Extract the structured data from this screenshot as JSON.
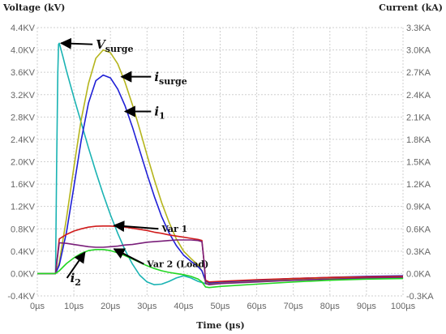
{
  "chart_data": {
    "type": "line",
    "title": "",
    "xlabel": "Time (µs)",
    "ylabel_left": "Voltage (kV)",
    "ylabel_right": "Current (kA)",
    "xlim": [
      0,
      100
    ],
    "ylim_left": [
      -0.4,
      4.4
    ],
    "ylim_right": [
      -0.3,
      3.3
    ],
    "grid": true,
    "x_ticks": [
      "0µs",
      "10µs",
      "20µs",
      "30µs",
      "40µs",
      "50µs",
      "60µs",
      "70µs",
      "80µs",
      "90µs",
      "100µs"
    ],
    "y_ticks_left": [
      "4.4KV",
      "4.0KV",
      "3.6KV",
      "3.2KV",
      "2.8KV",
      "2.4KV",
      "2.0KV",
      "1.6KV",
      "1.2KV",
      "0.8KV",
      "0.4KV",
      "0.0KV",
      "-0.4KV"
    ],
    "y_ticks_right": [
      "3.3KA",
      "3.0KA",
      "2.7KA",
      "2.4KA",
      "2.1KA",
      "1.8KA",
      "1.5KA",
      "1.2KA",
      "0.9KA",
      "0.6KA",
      "0.3KA",
      "0.0KA",
      "-0.3KA"
    ],
    "series": [
      {
        "color": "#1ab3b3",
        "axis": "left",
        "points": [
          [
            0,
            0
          ],
          [
            5,
            0
          ],
          [
            5.3,
            2.0
          ],
          [
            5.6,
            3.6
          ],
          [
            5.8,
            4.1
          ],
          [
            6.0,
            4.12
          ],
          [
            7,
            3.88
          ],
          [
            8,
            3.62
          ],
          [
            10,
            3.15
          ],
          [
            12,
            2.7
          ],
          [
            14,
            2.25
          ],
          [
            16,
            1.82
          ],
          [
            18,
            1.42
          ],
          [
            20,
            1.05
          ],
          [
            22,
            0.72
          ],
          [
            24,
            0.42
          ],
          [
            26,
            0.17
          ],
          [
            28,
            -0.03
          ],
          [
            30,
            -0.15
          ],
          [
            32,
            -0.2
          ],
          [
            34,
            -0.19
          ],
          [
            36,
            -0.14
          ],
          [
            38,
            -0.08
          ],
          [
            40,
            -0.04
          ],
          [
            42,
            -0.08
          ],
          [
            44,
            -0.14
          ],
          [
            46,
            -0.18
          ],
          [
            50,
            -0.16
          ],
          [
            60,
            -0.14
          ],
          [
            70,
            -0.12
          ],
          [
            80,
            -0.1
          ],
          [
            90,
            -0.09
          ],
          [
            100,
            -0.08
          ]
        ]
      },
      {
        "color": "#b5b51c",
        "axis": "left",
        "points": [
          [
            0,
            0
          ],
          [
            5,
            0
          ],
          [
            6,
            0.2
          ],
          [
            8,
            1.0
          ],
          [
            10,
            1.9
          ],
          [
            12,
            2.75
          ],
          [
            14,
            3.4
          ],
          [
            16,
            3.85
          ],
          [
            18,
            4.0
          ],
          [
            20,
            3.95
          ],
          [
            22,
            3.75
          ],
          [
            24,
            3.42
          ],
          [
            26,
            3.02
          ],
          [
            28,
            2.58
          ],
          [
            30,
            2.12
          ],
          [
            32,
            1.68
          ],
          [
            34,
            1.27
          ],
          [
            36,
            0.92
          ],
          [
            38,
            0.62
          ],
          [
            40,
            0.4
          ],
          [
            42,
            0.27
          ],
          [
            44,
            0.15
          ],
          [
            45,
            0.05
          ],
          [
            46,
            -0.15
          ],
          [
            47,
            -0.19
          ],
          [
            50,
            -0.17
          ],
          [
            60,
            -0.13
          ],
          [
            70,
            -0.1
          ],
          [
            80,
            -0.08
          ],
          [
            90,
            -0.06
          ],
          [
            100,
            -0.05
          ]
        ]
      },
      {
        "color": "#1f1fd6",
        "axis": "left",
        "points": [
          [
            0,
            0
          ],
          [
            5,
            0
          ],
          [
            6,
            0.15
          ],
          [
            8,
            0.75
          ],
          [
            10,
            1.55
          ],
          [
            12,
            2.38
          ],
          [
            14,
            3.05
          ],
          [
            16,
            3.45
          ],
          [
            18,
            3.55
          ],
          [
            20,
            3.5
          ],
          [
            22,
            3.3
          ],
          [
            24,
            3.0
          ],
          [
            26,
            2.62
          ],
          [
            28,
            2.2
          ],
          [
            30,
            1.78
          ],
          [
            32,
            1.38
          ],
          [
            34,
            1.02
          ],
          [
            36,
            0.73
          ],
          [
            38,
            0.5
          ],
          [
            40,
            0.33
          ],
          [
            42,
            0.22
          ],
          [
            44,
            0.12
          ],
          [
            45,
            0.05
          ],
          [
            46,
            -0.13
          ],
          [
            47,
            -0.17
          ],
          [
            50,
            -0.15
          ],
          [
            60,
            -0.12
          ],
          [
            70,
            -0.09
          ],
          [
            80,
            -0.07
          ],
          [
            90,
            -0.05
          ],
          [
            100,
            -0.04
          ]
        ]
      },
      {
        "color": "#d01c1c",
        "axis": "left",
        "points": [
          [
            0,
            0
          ],
          [
            5,
            0
          ],
          [
            6,
            0.62
          ],
          [
            8,
            0.7
          ],
          [
            10,
            0.76
          ],
          [
            12,
            0.8
          ],
          [
            14,
            0.83
          ],
          [
            16,
            0.845
          ],
          [
            18,
            0.85
          ],
          [
            20,
            0.85
          ],
          [
            22,
            0.84
          ],
          [
            24,
            0.83
          ],
          [
            26,
            0.81
          ],
          [
            28,
            0.79
          ],
          [
            30,
            0.77
          ],
          [
            32,
            0.74
          ],
          [
            34,
            0.72
          ],
          [
            36,
            0.69
          ],
          [
            38,
            0.67
          ],
          [
            40,
            0.65
          ],
          [
            42,
            0.63
          ],
          [
            44,
            0.61
          ],
          [
            45,
            0.59
          ],
          [
            45.6,
            0.2
          ],
          [
            46,
            -0.12
          ],
          [
            47,
            -0.15
          ],
          [
            50,
            -0.14
          ],
          [
            60,
            -0.11
          ],
          [
            70,
            -0.09
          ],
          [
            80,
            -0.07
          ],
          [
            90,
            -0.06
          ],
          [
            100,
            -0.05
          ]
        ]
      },
      {
        "color": "#7a1f7a",
        "axis": "left",
        "points": [
          [
            0,
            0
          ],
          [
            5,
            0
          ],
          [
            6,
            0.55
          ],
          [
            8,
            0.54
          ],
          [
            10,
            0.52
          ],
          [
            12,
            0.5
          ],
          [
            14,
            0.48
          ],
          [
            16,
            0.47
          ],
          [
            18,
            0.47
          ],
          [
            20,
            0.48
          ],
          [
            22,
            0.49
          ],
          [
            24,
            0.51
          ],
          [
            26,
            0.52
          ],
          [
            28,
            0.54
          ],
          [
            30,
            0.56
          ],
          [
            32,
            0.57
          ],
          [
            34,
            0.58
          ],
          [
            36,
            0.59
          ],
          [
            38,
            0.6
          ],
          [
            40,
            0.6
          ],
          [
            42,
            0.6
          ],
          [
            44,
            0.59
          ],
          [
            45,
            0.57
          ],
          [
            45.6,
            0.2
          ],
          [
            46,
            -0.18
          ],
          [
            47,
            -0.2
          ],
          [
            50,
            -0.18
          ],
          [
            60,
            -0.15
          ],
          [
            70,
            -0.12
          ],
          [
            80,
            -0.1
          ],
          [
            90,
            -0.08
          ],
          [
            100,
            -0.07
          ]
        ]
      },
      {
        "color": "#22d622",
        "axis": "left",
        "points": [
          [
            0,
            0
          ],
          [
            5,
            0
          ],
          [
            6,
            0.05
          ],
          [
            8,
            0.18
          ],
          [
            10,
            0.28
          ],
          [
            12,
            0.36
          ],
          [
            14,
            0.41
          ],
          [
            16,
            0.43
          ],
          [
            18,
            0.43
          ],
          [
            20,
            0.41
          ],
          [
            22,
            0.37
          ],
          [
            24,
            0.32
          ],
          [
            26,
            0.26
          ],
          [
            28,
            0.2
          ],
          [
            30,
            0.14
          ],
          [
            32,
            0.09
          ],
          [
            34,
            0.05
          ],
          [
            36,
            0.02
          ],
          [
            38,
            0.0
          ],
          [
            40,
            -0.02
          ],
          [
            42,
            -0.05
          ],
          [
            44,
            -0.1
          ],
          [
            45,
            -0.15
          ],
          [
            46,
            -0.24
          ],
          [
            47,
            -0.25
          ],
          [
            50,
            -0.23
          ],
          [
            60,
            -0.19
          ],
          [
            70,
            -0.15
          ],
          [
            80,
            -0.12
          ],
          [
            90,
            -0.1
          ],
          [
            100,
            -0.09
          ]
        ]
      }
    ],
    "annotations": [
      {
        "id": "vsurge",
        "main": "V",
        "sub": "surge",
        "tip": [
          6.5,
          4.12
        ],
        "text_at": [
          16,
          4.1
        ],
        "size": 15,
        "italic_main": true
      },
      {
        "id": "isurge",
        "main": "i",
        "sub": "surge",
        "tip": [
          23,
          3.52
        ],
        "text_at": [
          32,
          3.52
        ],
        "size": 15,
        "italic_main": true
      },
      {
        "id": "i1",
        "main": "i",
        "sub": "1",
        "tip": [
          24,
          2.9
        ],
        "text_at": [
          32,
          2.9
        ],
        "size": 15,
        "italic_main": true
      },
      {
        "id": "var1",
        "main": "Var 1",
        "sub": "",
        "tip": [
          21,
          0.86
        ],
        "text_at": [
          34,
          0.8
        ],
        "size": 11,
        "italic_main": false
      },
      {
        "id": "var2",
        "main": "Var 2 (Load)",
        "sub": "",
        "tip": [
          21,
          0.44
        ],
        "text_at": [
          30,
          0.17
        ],
        "size": 11,
        "italic_main": false
      },
      {
        "id": "i2",
        "main": "i",
        "sub": "2",
        "tip": [
          13,
          0.38
        ],
        "text_at": [
          9,
          -0.08
        ],
        "size": 15,
        "italic_main": true
      }
    ]
  }
}
